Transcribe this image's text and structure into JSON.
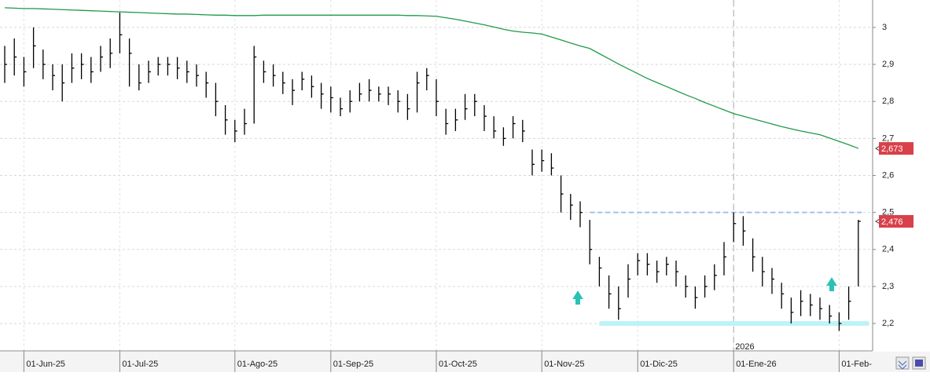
{
  "chart_data": {
    "type": "ohlc",
    "categories": [
      null,
      null,
      "01-Jun-25",
      null,
      null,
      null,
      null,
      null,
      null,
      null,
      null,
      null,
      "01-Jul-25",
      null,
      null,
      null,
      null,
      null,
      null,
      null,
      null,
      null,
      null,
      null,
      "01-Ago-25",
      null,
      null,
      null,
      null,
      null,
      null,
      null,
      null,
      null,
      "01-Sep-25",
      null,
      null,
      null,
      null,
      null,
      null,
      null,
      null,
      null,
      null,
      "01-Oct-25",
      null,
      null,
      null,
      null,
      null,
      null,
      null,
      null,
      null,
      null,
      "01-Nov-25",
      null,
      null,
      null,
      null,
      null,
      null,
      null,
      null,
      null,
      "01-Dic-25",
      null,
      null,
      null,
      null,
      null,
      null,
      null,
      null,
      null,
      "01-Ene-26",
      null,
      null,
      null,
      null,
      null,
      null,
      null,
      null,
      null,
      null,
      "01-Feb-",
      null,
      null
    ],
    "year_label": "2026",
    "price": {
      "color": "#000000",
      "high": [
        2.95,
        2.97,
        2.92,
        3.0,
        2.94,
        2.9,
        2.9,
        2.93,
        2.93,
        2.92,
        2.95,
        2.97,
        3.04,
        2.97,
        2.9,
        2.91,
        2.92,
        2.92,
        2.92,
        2.91,
        2.9,
        2.88,
        2.85,
        2.79,
        2.75,
        2.78,
        2.95,
        2.91,
        2.9,
        2.88,
        2.86,
        2.88,
        2.87,
        2.85,
        2.84,
        2.81,
        2.83,
        2.85,
        2.86,
        2.84,
        2.84,
        2.83,
        2.82,
        2.88,
        2.89,
        2.86,
        2.78,
        2.78,
        2.82,
        2.82,
        2.79,
        2.76,
        2.73,
        2.76,
        2.75,
        2.67,
        2.67,
        2.66,
        2.6,
        2.55,
        2.53,
        2.48,
        2.38,
        2.33,
        2.3,
        2.36,
        2.39,
        2.39,
        2.37,
        2.38,
        2.37,
        2.33,
        2.3,
        2.33,
        2.36,
        2.42,
        2.5,
        2.49,
        2.43,
        2.38,
        2.35,
        2.31,
        2.27,
        2.29,
        2.28,
        2.27,
        2.25,
        2.23,
        2.3,
        2.48
      ],
      "low": [
        2.85,
        2.87,
        2.84,
        2.89,
        2.86,
        2.83,
        2.8,
        2.85,
        2.86,
        2.85,
        2.88,
        2.89,
        2.93,
        2.84,
        2.83,
        2.85,
        2.87,
        2.87,
        2.86,
        2.85,
        2.84,
        2.81,
        2.76,
        2.71,
        2.69,
        2.71,
        2.74,
        2.85,
        2.84,
        2.82,
        2.79,
        2.83,
        2.81,
        2.78,
        2.77,
        2.76,
        2.77,
        2.8,
        2.8,
        2.8,
        2.79,
        2.77,
        2.75,
        2.77,
        2.83,
        2.76,
        2.71,
        2.72,
        2.75,
        2.76,
        2.72,
        2.7,
        2.68,
        2.7,
        2.69,
        2.6,
        2.61,
        2.6,
        2.5,
        2.48,
        2.46,
        2.36,
        2.3,
        2.24,
        2.21,
        2.27,
        2.33,
        2.33,
        2.31,
        2.33,
        2.3,
        2.27,
        2.24,
        2.27,
        2.29,
        2.33,
        2.42,
        2.41,
        2.34,
        2.3,
        2.28,
        2.24,
        2.2,
        2.22,
        2.22,
        2.21,
        2.2,
        2.18,
        2.21,
        2.3
      ],
      "close": [
        2.9,
        2.92,
        2.88,
        2.95,
        2.9,
        2.87,
        2.85,
        2.89,
        2.9,
        2.88,
        2.92,
        2.93,
        2.98,
        2.93,
        2.85,
        2.88,
        2.9,
        2.9,
        2.89,
        2.88,
        2.87,
        2.85,
        2.8,
        2.75,
        2.72,
        2.74,
        2.92,
        2.88,
        2.87,
        2.85,
        2.83,
        2.86,
        2.84,
        2.82,
        2.81,
        2.78,
        2.8,
        2.82,
        2.83,
        2.82,
        2.82,
        2.8,
        2.78,
        2.85,
        2.87,
        2.8,
        2.74,
        2.75,
        2.78,
        2.8,
        2.76,
        2.72,
        2.7,
        2.74,
        2.72,
        2.63,
        2.64,
        2.62,
        2.55,
        2.52,
        2.5,
        2.4,
        2.35,
        2.28,
        2.24,
        2.32,
        2.37,
        2.36,
        2.34,
        2.36,
        2.34,
        2.3,
        2.27,
        2.3,
        2.33,
        2.38,
        2.47,
        2.45,
        2.38,
        2.34,
        2.32,
        2.28,
        2.23,
        2.26,
        2.25,
        2.24,
        2.22,
        2.2,
        2.26,
        2.476
      ],
      "last_label": "2,476",
      "label_color": "#d9404a"
    },
    "ma": {
      "color": "#1f9a4a",
      "last_label": "2,673",
      "label_color": "#d9404a",
      "values": [
        3.053,
        3.052,
        3.051,
        3.051,
        3.05,
        3.049,
        3.048,
        3.047,
        3.046,
        3.045,
        3.044,
        3.043,
        3.042,
        3.041,
        3.04,
        3.039,
        3.038,
        3.037,
        3.036,
        3.036,
        3.035,
        3.034,
        3.033,
        3.033,
        3.032,
        3.032,
        3.032,
        3.033,
        3.033,
        3.033,
        3.033,
        3.033,
        3.033,
        3.033,
        3.033,
        3.033,
        3.033,
        3.033,
        3.033,
        3.033,
        3.033,
        3.033,
        3.032,
        3.032,
        3.031,
        3.03,
        3.026,
        3.022,
        3.017,
        3.012,
        3.007,
        3.001,
        2.995,
        2.99,
        2.987,
        2.985,
        2.982,
        2.974,
        2.966,
        2.958,
        2.95,
        2.943,
        2.929,
        2.915,
        2.901,
        2.888,
        2.875,
        2.862,
        2.851,
        2.84,
        2.829,
        2.818,
        2.808,
        2.797,
        2.787,
        2.777,
        2.767,
        2.76,
        2.753,
        2.746,
        2.739,
        2.732,
        2.726,
        2.72,
        2.715,
        2.71,
        2.701,
        2.692,
        2.683,
        2.673
      ]
    },
    "resistance": {
      "value": 2.5,
      "color": "#9fc3ea"
    },
    "support": {
      "value": 2.2,
      "color": "#bdf3f6"
    },
    "ylim": [
      2.126,
      3.074
    ],
    "yticks": [
      {
        "value": 2.2,
        "label": "2,2"
      },
      {
        "value": 2.3,
        "label": "2,3"
      },
      {
        "value": 2.4,
        "label": "2,4"
      },
      {
        "value": 2.5,
        "label": "2,5"
      },
      {
        "value": 2.6,
        "label": "2,6"
      },
      {
        "value": 2.7,
        "label": "2,7"
      },
      {
        "value": 2.8,
        "label": "2,8"
      },
      {
        "value": 2.9,
        "label": "2,9"
      },
      {
        "value": 3,
        "label": "3"
      }
    ],
    "grid": true
  }
}
